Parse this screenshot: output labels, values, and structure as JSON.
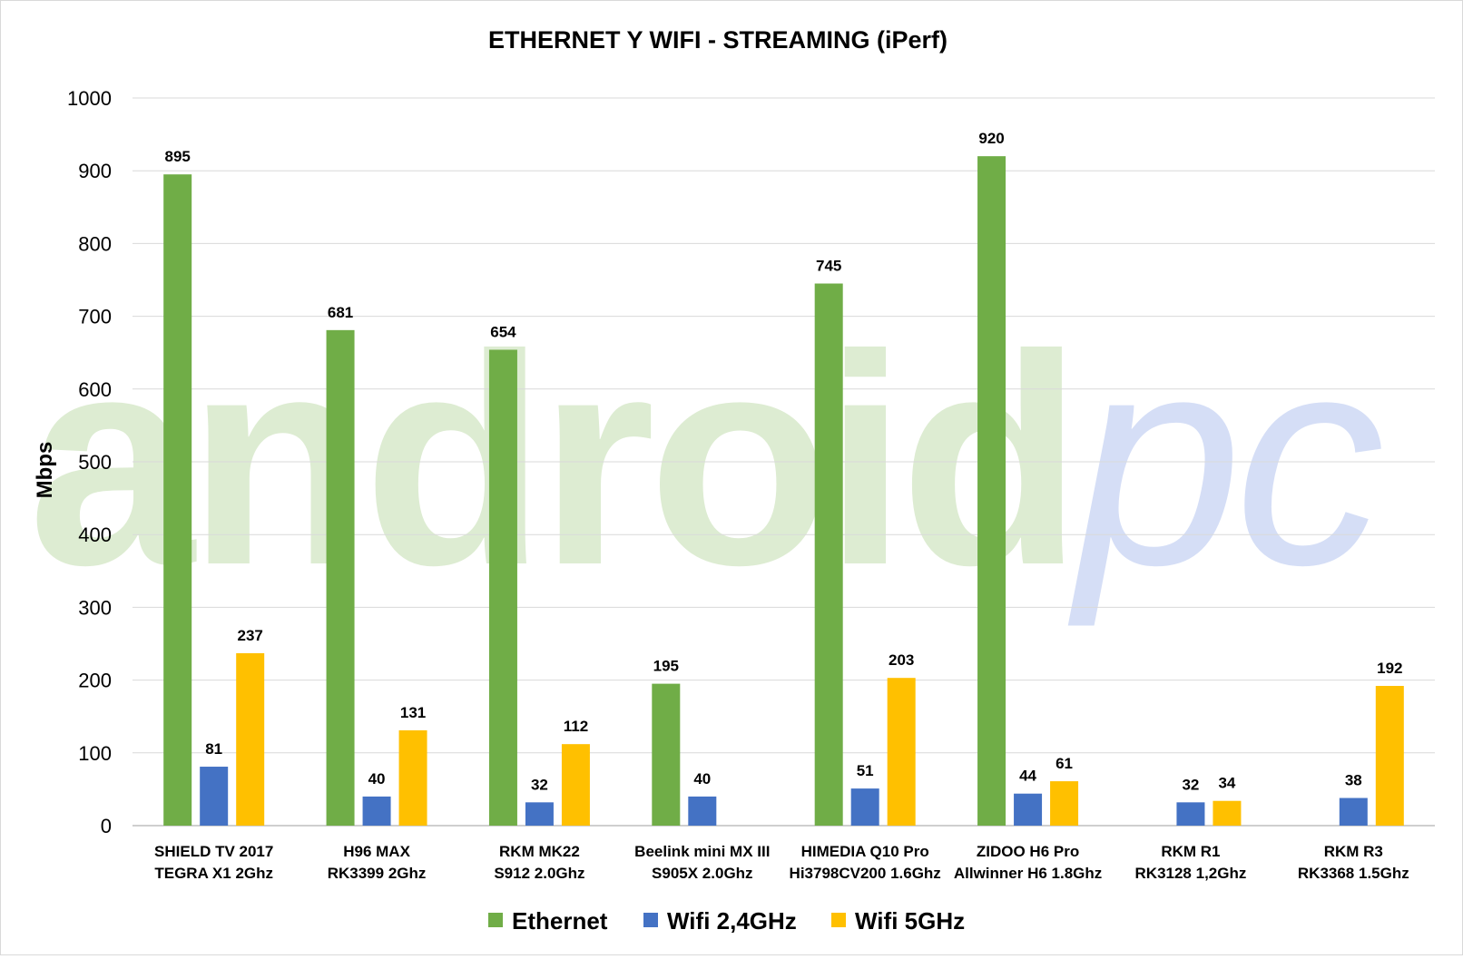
{
  "chart_data": {
    "type": "bar",
    "title": "ETHERNET Y WIFI - STREAMING (iPerf)",
    "xlabel": "",
    "ylabel": "Mbps",
    "ylim": [
      0,
      1000
    ],
    "yticks": [
      0,
      100,
      200,
      300,
      400,
      500,
      600,
      700,
      800,
      900,
      1000
    ],
    "grid": true,
    "legend_position": "bottom",
    "watermark": "androidpc",
    "categories": [
      [
        "SHIELD TV 2017",
        "TEGRA X1 2Ghz"
      ],
      [
        "H96 MAX",
        "RK3399 2Ghz"
      ],
      [
        "RKM MK22",
        "S912 2.0Ghz"
      ],
      [
        "Beelink mini MX III",
        "S905X 2.0Ghz"
      ],
      [
        "HIMEDIA Q10 Pro",
        "Hi3798CV200 1.6Ghz"
      ],
      [
        "ZIDOO H6 Pro",
        "Allwinner H6 1.8Ghz"
      ],
      [
        "RKM R1",
        "RK3128 1,2Ghz"
      ],
      [
        "RKM R3",
        "RK3368 1.5Ghz"
      ]
    ],
    "series": [
      {
        "name": "Ethernet",
        "color": "#70ad47",
        "values": [
          895,
          681,
          654,
          195,
          745,
          920,
          null,
          null
        ]
      },
      {
        "name": "Wifi 2,4GHz",
        "color": "#4472c4",
        "values": [
          81,
          40,
          32,
          40,
          51,
          44,
          32,
          38
        ]
      },
      {
        "name": "Wifi 5GHz",
        "color": "#ffc000",
        "values": [
          237,
          131,
          112,
          null,
          203,
          61,
          34,
          192
        ]
      }
    ]
  }
}
